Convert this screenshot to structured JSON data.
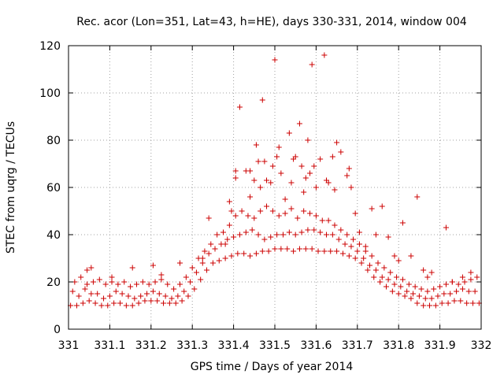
{
  "chart_data": {
    "type": "scatter",
    "title": "Rec. acor (Lon=351, Lat=43, h=HE), days 330-331, 2014, window 004",
    "xlabel": "GPS time / Days of year 2014",
    "ylabel": "STEC from uqrg / TECUs",
    "xlim": [
      331,
      332
    ],
    "ylim": [
      0,
      120
    ],
    "xticks": [
      "331",
      "331.1",
      "331.2",
      "331.3",
      "331.4",
      "331.5",
      "331.6",
      "331.7",
      "331.8",
      "331.9",
      "332"
    ],
    "yticks": [
      "0",
      "20",
      "40",
      "60",
      "80",
      "100",
      "120"
    ],
    "grid": true,
    "marker": "+",
    "color": "#cc0000",
    "series": [
      {
        "name": "band-low",
        "points": [
          [
            331.005,
            10
          ],
          [
            331.02,
            10
          ],
          [
            331.035,
            11
          ],
          [
            331.05,
            12
          ],
          [
            331.065,
            11
          ],
          [
            331.08,
            10
          ],
          [
            331.095,
            10
          ],
          [
            331.11,
            11
          ],
          [
            331.125,
            11
          ],
          [
            331.14,
            10
          ],
          [
            331.155,
            10
          ],
          [
            331.17,
            11
          ],
          [
            331.185,
            12
          ],
          [
            331.2,
            12
          ],
          [
            331.215,
            12
          ],
          [
            331.23,
            11
          ],
          [
            331.245,
            11
          ],
          [
            331.26,
            11
          ],
          [
            331.275,
            12
          ],
          [
            331.29,
            14
          ],
          [
            331.305,
            17
          ],
          [
            331.32,
            21
          ],
          [
            331.335,
            25
          ],
          [
            331.35,
            28
          ],
          [
            331.365,
            29
          ],
          [
            331.38,
            30
          ],
          [
            331.395,
            31
          ],
          [
            331.41,
            32
          ],
          [
            331.425,
            32
          ],
          [
            331.44,
            31
          ],
          [
            331.455,
            32
          ],
          [
            331.47,
            33
          ],
          [
            331.485,
            33
          ],
          [
            331.5,
            34
          ],
          [
            331.515,
            34
          ],
          [
            331.53,
            34
          ],
          [
            331.545,
            33
          ],
          [
            331.56,
            34
          ],
          [
            331.575,
            34
          ],
          [
            331.59,
            34
          ],
          [
            331.605,
            33
          ],
          [
            331.62,
            33
          ],
          [
            331.635,
            33
          ],
          [
            331.65,
            33
          ],
          [
            331.665,
            32
          ],
          [
            331.68,
            31
          ],
          [
            331.695,
            30
          ],
          [
            331.71,
            28
          ],
          [
            331.725,
            25
          ],
          [
            331.74,
            22
          ],
          [
            331.755,
            20
          ],
          [
            331.77,
            18
          ],
          [
            331.785,
            16
          ],
          [
            331.8,
            15
          ],
          [
            331.815,
            14
          ],
          [
            331.83,
            13
          ],
          [
            331.845,
            11
          ],
          [
            331.86,
            10
          ],
          [
            331.875,
            10
          ],
          [
            331.89,
            10
          ],
          [
            331.905,
            11
          ],
          [
            331.92,
            11
          ],
          [
            331.935,
            12
          ],
          [
            331.95,
            12
          ],
          [
            331.965,
            11
          ],
          [
            331.98,
            11
          ],
          [
            331.995,
            11
          ]
        ]
      },
      {
        "name": "band-mid",
        "points": [
          [
            331.01,
            16
          ],
          [
            331.025,
            14
          ],
          [
            331.04,
            17
          ],
          [
            331.055,
            15
          ],
          [
            331.07,
            15
          ],
          [
            331.085,
            13
          ],
          [
            331.1,
            14
          ],
          [
            331.115,
            16
          ],
          [
            331.13,
            15
          ],
          [
            331.145,
            14
          ],
          [
            331.16,
            13
          ],
          [
            331.175,
            14
          ],
          [
            331.19,
            15
          ],
          [
            331.205,
            16
          ],
          [
            331.22,
            15
          ],
          [
            331.235,
            14
          ],
          [
            331.25,
            13
          ],
          [
            331.265,
            14
          ],
          [
            331.28,
            16
          ],
          [
            331.295,
            20
          ],
          [
            331.31,
            24
          ],
          [
            331.325,
            28
          ],
          [
            331.34,
            32
          ],
          [
            331.355,
            34
          ],
          [
            331.37,
            36
          ],
          [
            331.385,
            38
          ],
          [
            331.4,
            39
          ],
          [
            331.415,
            40
          ],
          [
            331.43,
            41
          ],
          [
            331.445,
            42
          ],
          [
            331.46,
            40
          ],
          [
            331.475,
            38
          ],
          [
            331.49,
            39
          ],
          [
            331.505,
            40
          ],
          [
            331.52,
            40
          ],
          [
            331.535,
            41
          ],
          [
            331.55,
            40
          ],
          [
            331.565,
            41
          ],
          [
            331.58,
            42
          ],
          [
            331.595,
            42
          ],
          [
            331.61,
            41
          ],
          [
            331.625,
            40
          ],
          [
            331.64,
            40
          ],
          [
            331.655,
            38
          ],
          [
            331.67,
            36
          ],
          [
            331.685,
            35
          ],
          [
            331.7,
            33
          ],
          [
            331.715,
            30
          ],
          [
            331.73,
            27
          ],
          [
            331.745,
            25
          ],
          [
            331.76,
            22
          ],
          [
            331.775,
            21
          ],
          [
            331.79,
            19
          ],
          [
            331.805,
            18
          ],
          [
            331.82,
            16
          ],
          [
            331.835,
            15
          ],
          [
            331.85,
            14
          ],
          [
            331.865,
            13
          ],
          [
            331.88,
            13
          ],
          [
            331.895,
            14
          ],
          [
            331.91,
            15
          ],
          [
            331.925,
            15
          ],
          [
            331.94,
            16
          ],
          [
            331.955,
            17
          ],
          [
            331.97,
            16
          ],
          [
            331.985,
            16
          ]
        ]
      },
      {
        "name": "band-high",
        "points": [
          [
            331.015,
            20
          ],
          [
            331.03,
            22
          ],
          [
            331.045,
            19
          ],
          [
            331.06,
            20
          ],
          [
            331.075,
            21
          ],
          [
            331.09,
            19
          ],
          [
            331.105,
            20
          ],
          [
            331.12,
            19
          ],
          [
            331.135,
            20
          ],
          [
            331.15,
            18
          ],
          [
            331.165,
            19
          ],
          [
            331.18,
            20
          ],
          [
            331.195,
            19
          ],
          [
            331.21,
            20
          ],
          [
            331.225,
            21
          ],
          [
            331.24,
            19
          ],
          [
            331.255,
            17
          ],
          [
            331.27,
            19
          ],
          [
            331.285,
            22
          ],
          [
            331.3,
            26
          ],
          [
            331.315,
            30
          ],
          [
            331.33,
            33
          ],
          [
            331.345,
            36
          ],
          [
            331.36,
            40
          ],
          [
            331.375,
            41
          ],
          [
            331.39,
            44
          ],
          [
            331.405,
            48
          ],
          [
            331.42,
            50
          ],
          [
            331.435,
            48
          ],
          [
            331.45,
            47
          ],
          [
            331.465,
            50
          ],
          [
            331.48,
            52
          ],
          [
            331.495,
            50
          ],
          [
            331.51,
            48
          ],
          [
            331.525,
            49
          ],
          [
            331.54,
            51
          ],
          [
            331.555,
            47
          ],
          [
            331.57,
            50
          ],
          [
            331.585,
            49
          ],
          [
            331.6,
            48
          ],
          [
            331.615,
            46
          ],
          [
            331.63,
            46
          ],
          [
            331.645,
            44
          ],
          [
            331.66,
            42
          ],
          [
            331.675,
            40
          ],
          [
            331.69,
            38
          ],
          [
            331.705,
            36
          ],
          [
            331.72,
            33
          ],
          [
            331.735,
            31
          ],
          [
            331.75,
            28
          ],
          [
            331.765,
            26
          ],
          [
            331.78,
            24
          ],
          [
            331.795,
            22
          ],
          [
            331.81,
            21
          ],
          [
            331.825,
            19
          ],
          [
            331.84,
            18
          ],
          [
            331.855,
            17
          ],
          [
            331.87,
            16
          ],
          [
            331.885,
            17
          ],
          [
            331.9,
            18
          ],
          [
            331.915,
            19
          ],
          [
            331.93,
            20
          ],
          [
            331.945,
            19
          ],
          [
            331.96,
            20
          ],
          [
            331.975,
            21
          ],
          [
            331.99,
            22
          ]
        ]
      },
      {
        "name": "outliers",
        "points": [
          [
            331.045,
            25
          ],
          [
            331.055,
            26
          ],
          [
            331.105,
            22
          ],
          [
            331.155,
            26
          ],
          [
            331.205,
            27
          ],
          [
            331.225,
            23
          ],
          [
            331.27,
            28
          ],
          [
            331.325,
            30
          ],
          [
            331.34,
            47
          ],
          [
            331.38,
            36
          ],
          [
            331.39,
            54
          ],
          [
            331.395,
            50
          ],
          [
            331.405,
            67
          ],
          [
            331.405,
            64
          ],
          [
            331.415,
            94
          ],
          [
            331.43,
            67
          ],
          [
            331.44,
            67
          ],
          [
            331.44,
            56
          ],
          [
            331.45,
            63
          ],
          [
            331.455,
            78
          ],
          [
            331.46,
            71
          ],
          [
            331.465,
            60
          ],
          [
            331.47,
            97
          ],
          [
            331.475,
            71
          ],
          [
            331.48,
            63
          ],
          [
            331.49,
            62
          ],
          [
            331.495,
            69
          ],
          [
            331.5,
            114
          ],
          [
            331.505,
            73
          ],
          [
            331.51,
            77
          ],
          [
            331.515,
            66
          ],
          [
            331.525,
            55
          ],
          [
            331.535,
            83
          ],
          [
            331.54,
            62
          ],
          [
            331.545,
            72
          ],
          [
            331.55,
            73
          ],
          [
            331.56,
            87
          ],
          [
            331.565,
            69
          ],
          [
            331.57,
            58
          ],
          [
            331.575,
            64
          ],
          [
            331.58,
            80
          ],
          [
            331.585,
            66
          ],
          [
            331.59,
            112
          ],
          [
            331.595,
            69
          ],
          [
            331.6,
            60
          ],
          [
            331.61,
            72
          ],
          [
            331.62,
            116
          ],
          [
            331.625,
            63
          ],
          [
            331.63,
            62
          ],
          [
            331.64,
            73
          ],
          [
            331.645,
            59
          ],
          [
            331.65,
            79
          ],
          [
            331.66,
            75
          ],
          [
            331.675,
            65
          ],
          [
            331.68,
            68
          ],
          [
            331.685,
            60
          ],
          [
            331.695,
            49
          ],
          [
            331.705,
            41
          ],
          [
            331.72,
            35
          ],
          [
            331.735,
            51
          ],
          [
            331.745,
            40
          ],
          [
            331.76,
            52
          ],
          [
            331.775,
            39
          ],
          [
            331.79,
            31
          ],
          [
            331.8,
            29
          ],
          [
            331.81,
            45
          ],
          [
            331.83,
            31
          ],
          [
            331.845,
            56
          ],
          [
            331.86,
            25
          ],
          [
            331.87,
            22
          ],
          [
            331.88,
            24
          ],
          [
            331.915,
            43
          ],
          [
            331.93,
            20
          ],
          [
            331.955,
            22
          ],
          [
            331.975,
            24
          ]
        ]
      }
    ]
  }
}
